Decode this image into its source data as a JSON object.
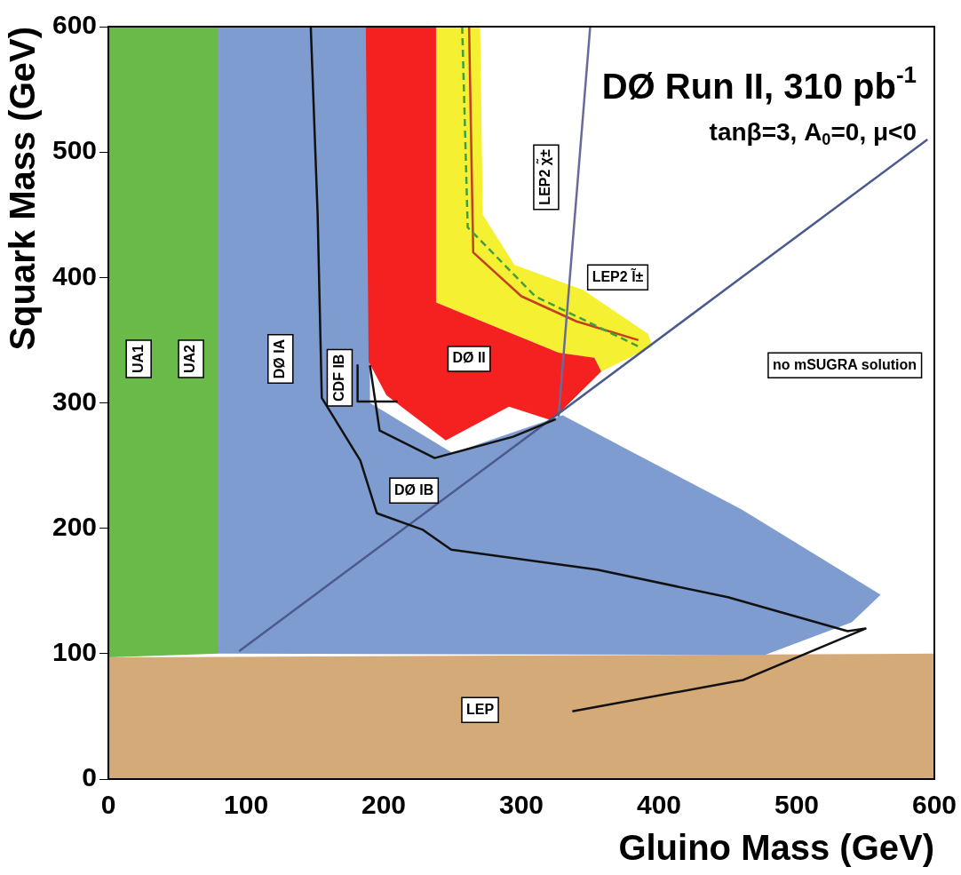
{
  "chart_data": {
    "type": "area",
    "xlabel": "Gluino Mass (GeV)",
    "ylabel": "Squark Mass (GeV)",
    "xlim": [
      0,
      600
    ],
    "ylim": [
      0,
      600
    ],
    "xticks": [
      0,
      100,
      200,
      300,
      400,
      500,
      600
    ],
    "yticks": [
      0,
      100,
      200,
      300,
      400,
      500,
      600
    ],
    "grid": false,
    "legend": false,
    "series": [
      {
        "color": "#d4aa78",
        "x": [
          0,
          0,
          600,
          600
        ],
        "values": [
          0,
          97,
          100,
          0
        ]
      },
      {
        "color": "#6aba4a",
        "x": [
          0,
          80,
          80,
          0
        ],
        "values": [
          97,
          100,
          600,
          600
        ]
      },
      {
        "color": "#7f9cd0",
        "x": [
          80,
          80,
          190,
          190,
          250,
          330,
          380,
          460,
          561,
          540,
          477
        ],
        "values": [
          100,
          600,
          600,
          300,
          260,
          290,
          261,
          215,
          147,
          125,
          99
        ]
      },
      {
        "color": "#f5f032",
        "x": [
          238,
          270,
          272,
          295,
          345,
          392,
          395,
          358,
          353,
          327,
          238
        ],
        "values": [
          600,
          600,
          450,
          410,
          390,
          355,
          345,
          325,
          336,
          340,
          380
        ]
      },
      {
        "color": "#f52020",
        "x": [
          187,
          238,
          238,
          327,
          353,
          358,
          322,
          291,
          245,
          202,
          189
        ],
        "values": [
          600,
          600,
          380,
          340,
          336,
          325,
          286,
          297,
          270,
          306,
          333
        ]
      },
      {
        "type": "line",
        "color": "#c04020",
        "x": [
          262,
          265,
          300,
          340,
          385
        ],
        "values": [
          600,
          420,
          385,
          365,
          350
        ]
      },
      {
        "type": "line",
        "color": "#40a040",
        "line_style": "dashed",
        "x": [
          257,
          261,
          310,
          385
        ],
        "values": [
          600,
          440,
          385,
          345
        ]
      },
      {
        "type": "line",
        "color": "#6a6a9a",
        "x": [
          350,
          327
        ],
        "values": [
          600,
          289
        ]
      },
      {
        "type": "line",
        "color": "#4a5a8c",
        "x": [
          95,
          460,
          595
        ],
        "values": [
          102,
          400,
          510
        ]
      },
      {
        "type": "line",
        "color": "#111111",
        "x": [
          147,
          152,
          155,
          183,
          195,
          228,
          249,
          355,
          450,
          537,
          550,
          461,
          337
        ],
        "values": [
          600,
          450,
          304,
          254,
          212,
          199,
          183,
          167,
          145,
          118,
          120,
          79,
          54
        ]
      },
      {
        "type": "line",
        "color": "#111111",
        "x": [
          190,
          197,
          237,
          294,
          325
        ],
        "values": [
          330,
          278,
          256,
          273,
          287
        ]
      },
      {
        "type": "line",
        "color": "#111111",
        "x": [
          181,
          181,
          210
        ],
        "values": [
          330,
          301,
          301
        ]
      }
    ],
    "annotations": [
      "DØ Run II, 310 pb$^{-1}$",
      "tanβ=3, A$_{0}$=0, μ<0",
      "UA1",
      "UA2",
      "DØ IA",
      "CDF IB",
      "DØ II",
      "DØ IB",
      "LEP",
      "LEP2 χ̃±",
      "LEP2 l̃±",
      "no mSUGRA solution"
    ]
  }
}
